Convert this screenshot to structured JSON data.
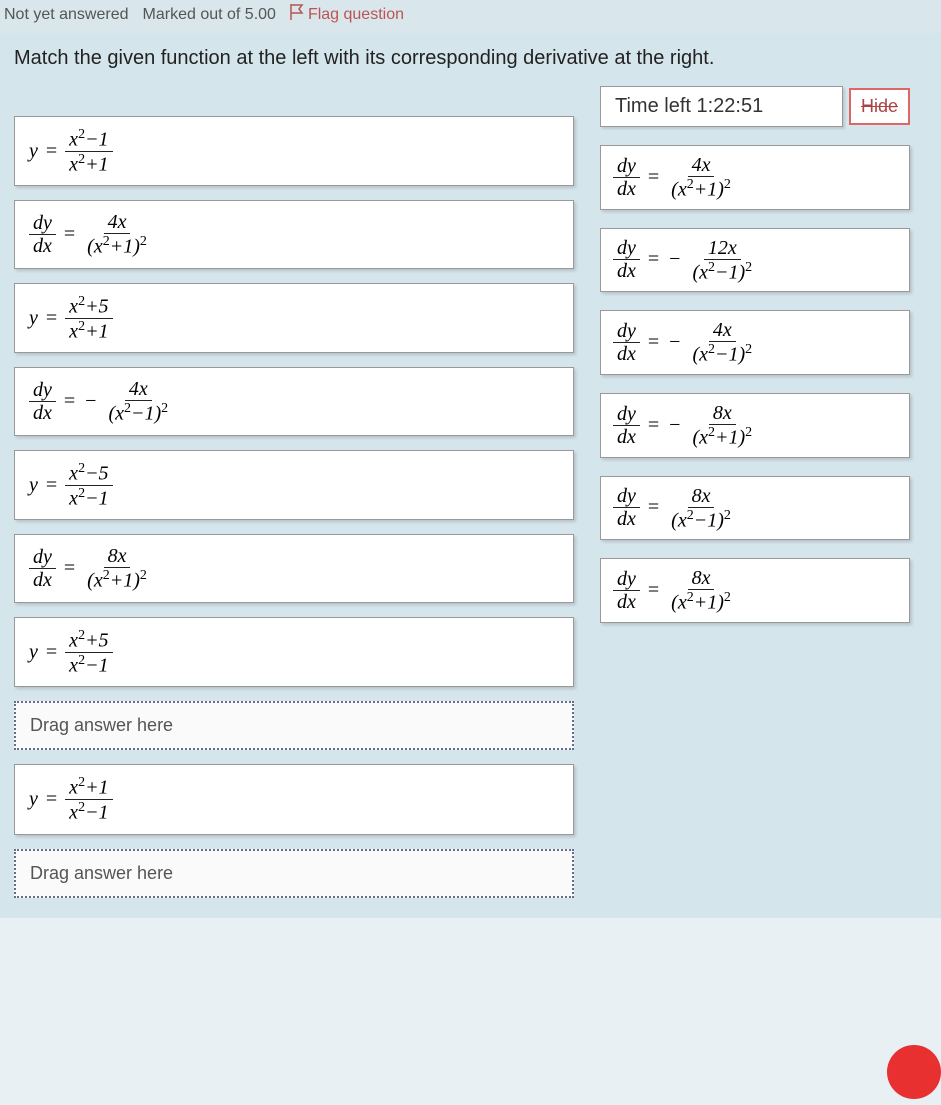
{
  "meta": {
    "status": "Not yet answered",
    "marks": "Marked out of 5.00",
    "flag": "Flag question"
  },
  "question": "Match the given function at the left with its corresponding derivative at the right.",
  "timer": {
    "label": "Time left",
    "value": "1:22:51",
    "hide": "Hide"
  },
  "left_items": [
    {
      "type": "func",
      "numer": "x²−1",
      "denom": "x²+1"
    },
    {
      "type": "deriv",
      "sign": "",
      "numer": "4x",
      "denom": "(x²+1)²"
    },
    {
      "type": "func",
      "numer": "x²+5",
      "denom": "x²+1"
    },
    {
      "type": "deriv",
      "sign": "−",
      "numer": "4x",
      "denom": "(x²−1)²"
    },
    {
      "type": "func",
      "numer": "x²−5",
      "denom": "x²−1"
    },
    {
      "type": "deriv",
      "sign": "",
      "numer": "8x",
      "denom": "(x²+1)²"
    },
    {
      "type": "func",
      "numer": "x²+5",
      "denom": "x²−1"
    },
    {
      "type": "drop",
      "text": "Drag answer here"
    },
    {
      "type": "func",
      "numer": "x²+1",
      "denom": "x²−1"
    },
    {
      "type": "drop",
      "text": "Drag answer here"
    }
  ],
  "right_items": [
    {
      "sign": "",
      "numer": "4x",
      "denom": "(x²+1)²",
      "truncated": true
    },
    {
      "sign": "−",
      "numer": "12x",
      "denom": "(x²−1)²"
    },
    {
      "sign": "−",
      "numer": "4x",
      "denom": "(x²−1)²"
    },
    {
      "sign": "−",
      "numer": "8x",
      "denom": "(x²+1)²"
    },
    {
      "sign": "",
      "numer": "8x",
      "denom": "(x²−1)²"
    },
    {
      "sign": "",
      "numer": "8x",
      "denom": "(x²+1)²"
    }
  ],
  "colors": {
    "page_bg": "#d5e5ec",
    "card_bg": "#ffffff",
    "border": "#999999",
    "drop_border": "#6a6a8a",
    "flag": "#b55",
    "hide_border": "#d66",
    "red_dot": "#e83030"
  }
}
